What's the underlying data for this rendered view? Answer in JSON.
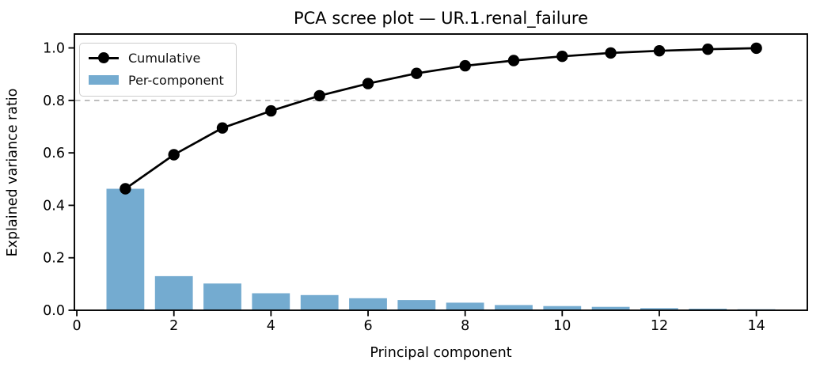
{
  "figure": {
    "background": "#ffffff"
  },
  "chart_data": {
    "type": "bar",
    "subtype": "bar+line (scree plot)",
    "title": "PCA scree plot — UR.1.renal_failure",
    "xlabel": "Principal component",
    "ylabel": "Explained variance ratio",
    "x": [
      1,
      2,
      3,
      4,
      5,
      6,
      7,
      8,
      9,
      10,
      11,
      12,
      13,
      14
    ],
    "series": [
      {
        "name": "Cumulative",
        "type": "line",
        "color": "#000000",
        "marker": "circle",
        "values": [
          0.463,
          0.593,
          0.695,
          0.76,
          0.818,
          0.864,
          0.903,
          0.932,
          0.952,
          0.968,
          0.981,
          0.989,
          0.995,
          0.999
        ]
      },
      {
        "name": "Per-component",
        "type": "bar",
        "color": "#74abd0",
        "values": [
          0.463,
          0.13,
          0.102,
          0.065,
          0.058,
          0.046,
          0.039,
          0.029,
          0.02,
          0.016,
          0.013,
          0.008,
          0.006,
          0.004
        ]
      }
    ],
    "threshold_line": {
      "y": 0.8,
      "style": "dashed",
      "color": "#aaaaaa"
    },
    "xlim": [
      -0.05,
      15.05
    ],
    "ylim": [
      0,
      1.053
    ],
    "xticks": [
      0,
      2,
      4,
      6,
      8,
      10,
      12,
      14
    ],
    "yticks": [
      0.0,
      0.2,
      0.4,
      0.6,
      0.8,
      1.0
    ],
    "grid": false,
    "legend": {
      "position": "upper-left",
      "entries": [
        "Cumulative",
        "Per-component"
      ]
    },
    "bar_width_units": 0.78,
    "axes_box": true
  }
}
